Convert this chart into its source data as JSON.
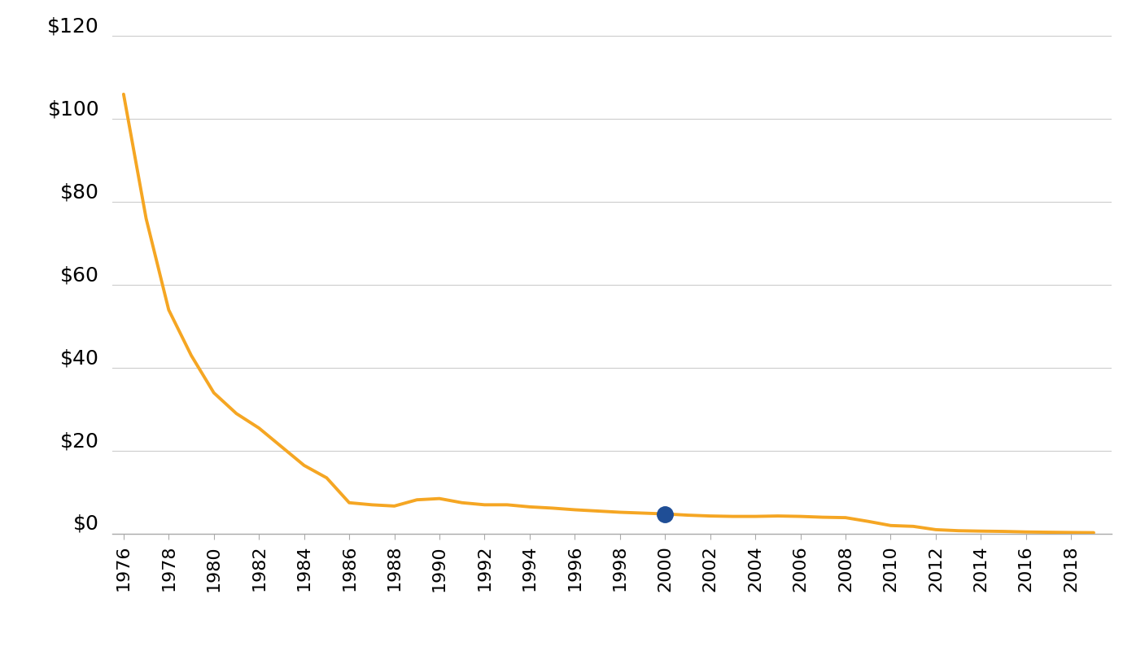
{
  "years": [
    1976,
    1977,
    1978,
    1979,
    1980,
    1981,
    1982,
    1983,
    1984,
    1985,
    1986,
    1987,
    1988,
    1989,
    1990,
    1991,
    1992,
    1993,
    1994,
    1995,
    1996,
    1997,
    1998,
    1999,
    2000,
    2001,
    2002,
    2003,
    2004,
    2005,
    2006,
    2007,
    2008,
    2009,
    2010,
    2011,
    2012,
    2013,
    2014,
    2015,
    2016,
    2017,
    2018,
    2019
  ],
  "prices": [
    106.0,
    76.0,
    54.0,
    43.0,
    34.0,
    29.0,
    25.5,
    21.0,
    16.5,
    13.5,
    7.5,
    7.0,
    6.7,
    8.2,
    8.5,
    7.5,
    7.0,
    7.0,
    6.5,
    6.2,
    5.8,
    5.5,
    5.2,
    5.0,
    4.8,
    4.5,
    4.3,
    4.2,
    4.2,
    4.3,
    4.2,
    4.0,
    3.9,
    3.0,
    2.0,
    1.8,
    1.0,
    0.75,
    0.65,
    0.58,
    0.45,
    0.38,
    0.32,
    0.28
  ],
  "highlight_year": 2000,
  "highlight_price": 4.8,
  "line_color": "#F5A623",
  "highlight_color": "#1F4E96",
  "background_color": "#FFFFFF",
  "grid_color": "#CCCCCC",
  "ytick_labels": [
    "$0",
    "$20",
    "$40",
    "$60",
    "$80",
    "$100",
    "$120"
  ],
  "ytick_values": [
    0,
    20,
    40,
    60,
    80,
    100,
    120
  ],
  "ylim": [
    0,
    124
  ],
  "xlim": [
    1975.5,
    2019.8
  ],
  "xtick_years": [
    1976,
    1978,
    1980,
    1982,
    1984,
    1986,
    1988,
    1990,
    1992,
    1994,
    1996,
    1998,
    2000,
    2002,
    2004,
    2006,
    2008,
    2010,
    2012,
    2014,
    2016,
    2018
  ],
  "line_width": 2.8,
  "highlight_marker_size": 14,
  "font_size_y": 18,
  "font_size_x": 16
}
